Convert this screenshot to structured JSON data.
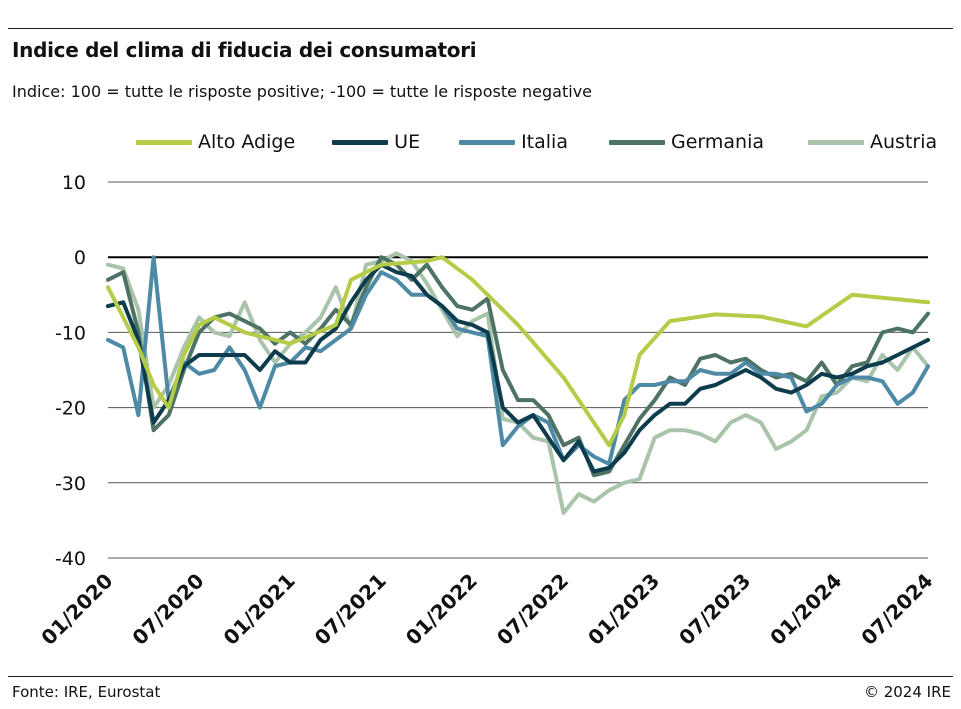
{
  "header": {
    "title": "Indice del clima di fiducia dei consumatori",
    "subtitle": "Indice: 100 = tutte le risposte positive; -100 = tutte le risposte negative"
  },
  "footer": {
    "source": "Fonte: IRE, Eurostat",
    "copyright": "© 2024 IRE"
  },
  "chart_data": {
    "type": "line",
    "title": "Indice del clima di fiducia dei consumatori",
    "xlabel": "",
    "ylabel": "",
    "ylim": [
      -40,
      10
    ],
    "yticks": [
      10,
      0,
      -10,
      -20,
      -30,
      -40
    ],
    "ytick_labels": [
      "10",
      "0",
      "-10",
      "-20",
      "-30",
      "-40"
    ],
    "x_tick_labels": [
      "01/2020",
      "07/2020",
      "01/2021",
      "07/2021",
      "01/2022",
      "07/2022",
      "01/2023",
      "07/2023",
      "01/2024",
      "07/2024"
    ],
    "x_range": [
      "2020-01",
      "2024-07"
    ],
    "grid": "horizontal",
    "legend_position": "top",
    "series": [
      {
        "name": "Alto Adige",
        "color": "#b5cc48",
        "points": [
          [
            "2020-01",
            -4
          ],
          [
            "2020-02",
            -8
          ],
          [
            "2020-03",
            -12
          ],
          [
            "2020-04",
            -17
          ],
          [
            "2020-05",
            -20
          ],
          [
            "2020-06",
            -13
          ],
          [
            "2020-07",
            -9
          ],
          [
            "2020-08",
            -8
          ],
          [
            "2020-10",
            -10
          ],
          [
            "2021-01",
            -11.5
          ],
          [
            "2021-04",
            -9
          ],
          [
            "2021-05",
            -3
          ],
          [
            "2021-07",
            -1
          ],
          [
            "2021-10",
            -0.5
          ],
          [
            "2021-11",
            0
          ],
          [
            "2022-01",
            -3
          ],
          [
            "2022-04",
            -9
          ],
          [
            "2022-07",
            -16
          ],
          [
            "2022-10",
            -25
          ],
          [
            "2022-11",
            -21
          ],
          [
            "2022-12",
            -13
          ],
          [
            "2023-02",
            -8.5
          ],
          [
            "2023-05",
            -7.6
          ],
          [
            "2023-08",
            -7.9
          ],
          [
            "2023-11",
            -9.2
          ],
          [
            "2024-02",
            -5
          ],
          [
            "2024-07",
            -6
          ]
        ]
      },
      {
        "name": "UE",
        "color": "#0d3d4d",
        "points": [
          [
            "2020-01",
            -6.5
          ],
          [
            "2020-02",
            -6
          ],
          [
            "2020-03",
            -11
          ],
          [
            "2020-04",
            -22
          ],
          [
            "2020-05",
            -19
          ],
          [
            "2020-06",
            -14.5
          ],
          [
            "2020-07",
            -13
          ],
          [
            "2020-08",
            -13
          ],
          [
            "2020-09",
            -13
          ],
          [
            "2020-10",
            -13
          ],
          [
            "2020-11",
            -15
          ],
          [
            "2020-12",
            -12.5
          ],
          [
            "2021-01",
            -14
          ],
          [
            "2021-02",
            -14
          ],
          [
            "2021-03",
            -11
          ],
          [
            "2021-04",
            -9.5
          ],
          [
            "2021-05",
            -6
          ],
          [
            "2021-06",
            -3
          ],
          [
            "2021-07",
            -1
          ],
          [
            "2021-08",
            -2
          ],
          [
            "2021-09",
            -2.5
          ],
          [
            "2021-10",
            -5
          ],
          [
            "2021-11",
            -6.5
          ],
          [
            "2021-12",
            -8.5
          ],
          [
            "2022-01",
            -9
          ],
          [
            "2022-02",
            -10
          ],
          [
            "2022-03",
            -20
          ],
          [
            "2022-04",
            -22
          ],
          [
            "2022-05",
            -21
          ],
          [
            "2022-06",
            -24
          ],
          [
            "2022-07",
            -27
          ],
          [
            "2022-08",
            -24.5
          ],
          [
            "2022-09",
            -28.5
          ],
          [
            "2022-10",
            -28
          ],
          [
            "2022-11",
            -26
          ],
          [
            "2022-12",
            -23
          ],
          [
            "2023-01",
            -21
          ],
          [
            "2023-02",
            -19.5
          ],
          [
            "2023-03",
            -19.5
          ],
          [
            "2023-04",
            -17.5
          ],
          [
            "2023-05",
            -17
          ],
          [
            "2023-06",
            -16
          ],
          [
            "2023-07",
            -15
          ],
          [
            "2023-08",
            -16
          ],
          [
            "2023-09",
            -17.5
          ],
          [
            "2023-10",
            -18
          ],
          [
            "2023-11",
            -17
          ],
          [
            "2023-12",
            -15.5
          ],
          [
            "2024-01",
            -16
          ],
          [
            "2024-02",
            -15.5
          ],
          [
            "2024-03",
            -14.5
          ],
          [
            "2024-04",
            -14
          ],
          [
            "2024-05",
            -13
          ],
          [
            "2024-06",
            -12
          ],
          [
            "2024-07",
            -11
          ]
        ]
      },
      {
        "name": "Italia",
        "color": "#4e8aa6",
        "points": [
          [
            "2020-01",
            -11
          ],
          [
            "2020-02",
            -12
          ],
          [
            "2020-03",
            -21
          ],
          [
            "2020-04",
            0
          ],
          [
            "2020-05",
            -19
          ],
          [
            "2020-06",
            -14
          ],
          [
            "2020-07",
            -15.5
          ],
          [
            "2020-08",
            -15
          ],
          [
            "2020-09",
            -12
          ],
          [
            "2020-10",
            -15
          ],
          [
            "2020-11",
            -20
          ],
          [
            "2020-12",
            -14.5
          ],
          [
            "2021-01",
            -14
          ],
          [
            "2021-02",
            -12
          ],
          [
            "2021-03",
            -12.5
          ],
          [
            "2021-04",
            -11
          ],
          [
            "2021-05",
            -9.5
          ],
          [
            "2021-06",
            -5
          ],
          [
            "2021-07",
            -2
          ],
          [
            "2021-08",
            -3
          ],
          [
            "2021-09",
            -5
          ],
          [
            "2021-10",
            -5
          ],
          [
            "2021-11",
            -6.5
          ],
          [
            "2021-12",
            -9.5
          ],
          [
            "2022-01",
            -10
          ],
          [
            "2022-02",
            -10.5
          ],
          [
            "2022-03",
            -25
          ],
          [
            "2022-04",
            -22.5
          ],
          [
            "2022-05",
            -21
          ],
          [
            "2022-06",
            -22
          ],
          [
            "2022-07",
            -27
          ],
          [
            "2022-08",
            -25
          ],
          [
            "2022-09",
            -26.5
          ],
          [
            "2022-10",
            -27.5
          ],
          [
            "2022-11",
            -19
          ],
          [
            "2022-12",
            -17
          ],
          [
            "2023-01",
            -17
          ],
          [
            "2023-02",
            -16.5
          ],
          [
            "2023-03",
            -16.5
          ],
          [
            "2023-04",
            -15
          ],
          [
            "2023-05",
            -15.5
          ],
          [
            "2023-06",
            -15.5
          ],
          [
            "2023-07",
            -14
          ],
          [
            "2023-08",
            -15.5
          ],
          [
            "2023-09",
            -15.5
          ],
          [
            "2023-10",
            -16
          ],
          [
            "2023-11",
            -20.5
          ],
          [
            "2023-12",
            -19.5
          ],
          [
            "2024-01",
            -17
          ],
          [
            "2024-02",
            -16
          ],
          [
            "2024-03",
            -16
          ],
          [
            "2024-04",
            -16.5
          ],
          [
            "2024-05",
            -19.5
          ],
          [
            "2024-06",
            -18
          ],
          [
            "2024-07",
            -14.5
          ]
        ]
      },
      {
        "name": "Germania",
        "color": "#4e7365",
        "points": [
          [
            "2020-01",
            -3
          ],
          [
            "2020-02",
            -2
          ],
          [
            "2020-03",
            -10
          ],
          [
            "2020-04",
            -23
          ],
          [
            "2020-05",
            -21
          ],
          [
            "2020-06",
            -15
          ],
          [
            "2020-07",
            -10
          ],
          [
            "2020-08",
            -8
          ],
          [
            "2020-09",
            -7.5
          ],
          [
            "2020-10",
            -8.5
          ],
          [
            "2020-11",
            -9.5
          ],
          [
            "2020-12",
            -11.5
          ],
          [
            "2021-01",
            -10
          ],
          [
            "2021-02",
            -11.5
          ],
          [
            "2021-03",
            -9.5
          ],
          [
            "2021-04",
            -7
          ],
          [
            "2021-05",
            -9
          ],
          [
            "2021-06",
            -4
          ],
          [
            "2021-07",
            0
          ],
          [
            "2021-08",
            -1
          ],
          [
            "2021-09",
            -3
          ],
          [
            "2021-10",
            -1
          ],
          [
            "2021-11",
            -4
          ],
          [
            "2021-12",
            -6.5
          ],
          [
            "2022-01",
            -7
          ],
          [
            "2022-02",
            -5.5
          ],
          [
            "2022-03",
            -15
          ],
          [
            "2022-04",
            -19
          ],
          [
            "2022-05",
            -19
          ],
          [
            "2022-06",
            -21
          ],
          [
            "2022-07",
            -25
          ],
          [
            "2022-08",
            -24
          ],
          [
            "2022-09",
            -29
          ],
          [
            "2022-10",
            -28.5
          ],
          [
            "2022-11",
            -25
          ],
          [
            "2022-12",
            -21.5
          ],
          [
            "2023-01",
            -19
          ],
          [
            "2023-02",
            -16
          ],
          [
            "2023-03",
            -17
          ],
          [
            "2023-04",
            -13.5
          ],
          [
            "2023-05",
            -13
          ],
          [
            "2023-06",
            -14
          ],
          [
            "2023-07",
            -13.5
          ],
          [
            "2023-08",
            -15
          ],
          [
            "2023-09",
            -16
          ],
          [
            "2023-10",
            -15.5
          ],
          [
            "2023-11",
            -16.5
          ],
          [
            "2023-12",
            -14
          ],
          [
            "2024-01",
            -17
          ],
          [
            "2024-02",
            -14.5
          ],
          [
            "2024-03",
            -14
          ],
          [
            "2024-04",
            -10
          ],
          [
            "2024-05",
            -9.5
          ],
          [
            "2024-06",
            -10
          ],
          [
            "2024-07",
            -7.5
          ]
        ]
      },
      {
        "name": "Austria",
        "color": "#a9c4ab",
        "points": [
          [
            "2020-01",
            -1
          ],
          [
            "2020-02",
            -1.5
          ],
          [
            "2020-03",
            -7
          ],
          [
            "2020-04",
            -20
          ],
          [
            "2020-05",
            -17
          ],
          [
            "2020-06",
            -12
          ],
          [
            "2020-07",
            -8
          ],
          [
            "2020-08",
            -10
          ],
          [
            "2020-09",
            -10.5
          ],
          [
            "2020-10",
            -6
          ],
          [
            "2020-11",
            -11
          ],
          [
            "2020-12",
            -14
          ],
          [
            "2021-01",
            -11.5
          ],
          [
            "2021-02",
            -10
          ],
          [
            "2021-03",
            -8
          ],
          [
            "2021-04",
            -4
          ],
          [
            "2021-05",
            -9.5
          ],
          [
            "2021-06",
            -1
          ],
          [
            "2021-07",
            -0.5
          ],
          [
            "2021-08",
            0.5
          ],
          [
            "2021-09",
            -0.5
          ],
          [
            "2021-10",
            -3.5
          ],
          [
            "2021-11",
            -7
          ],
          [
            "2021-12",
            -10.5
          ],
          [
            "2022-01",
            -8.5
          ],
          [
            "2022-02",
            -7.5
          ],
          [
            "2022-03",
            -21.5
          ],
          [
            "2022-04",
            -22
          ],
          [
            "2022-05",
            -24
          ],
          [
            "2022-06",
            -24.5
          ],
          [
            "2022-07",
            -34
          ],
          [
            "2022-08",
            -31.5
          ],
          [
            "2022-09",
            -32.5
          ],
          [
            "2022-10",
            -31
          ],
          [
            "2022-11",
            -30
          ],
          [
            "2022-12",
            -29.5
          ],
          [
            "2023-01",
            -24
          ],
          [
            "2023-02",
            -23
          ],
          [
            "2023-03",
            -23
          ],
          [
            "2023-04",
            -23.5
          ],
          [
            "2023-05",
            -24.5
          ],
          [
            "2023-06",
            -22
          ],
          [
            "2023-07",
            -21
          ],
          [
            "2023-08",
            -22
          ],
          [
            "2023-09",
            -25.5
          ],
          [
            "2023-10",
            -24.5
          ],
          [
            "2023-11",
            -23
          ],
          [
            "2023-12",
            -18.5
          ],
          [
            "2024-01",
            -18
          ],
          [
            "2024-02",
            -16
          ],
          [
            "2024-03",
            -16.5
          ],
          [
            "2024-04",
            -13
          ],
          [
            "2024-05",
            -15
          ],
          [
            "2024-06",
            -12
          ],
          [
            "2024-07",
            -14.5
          ]
        ]
      }
    ]
  }
}
